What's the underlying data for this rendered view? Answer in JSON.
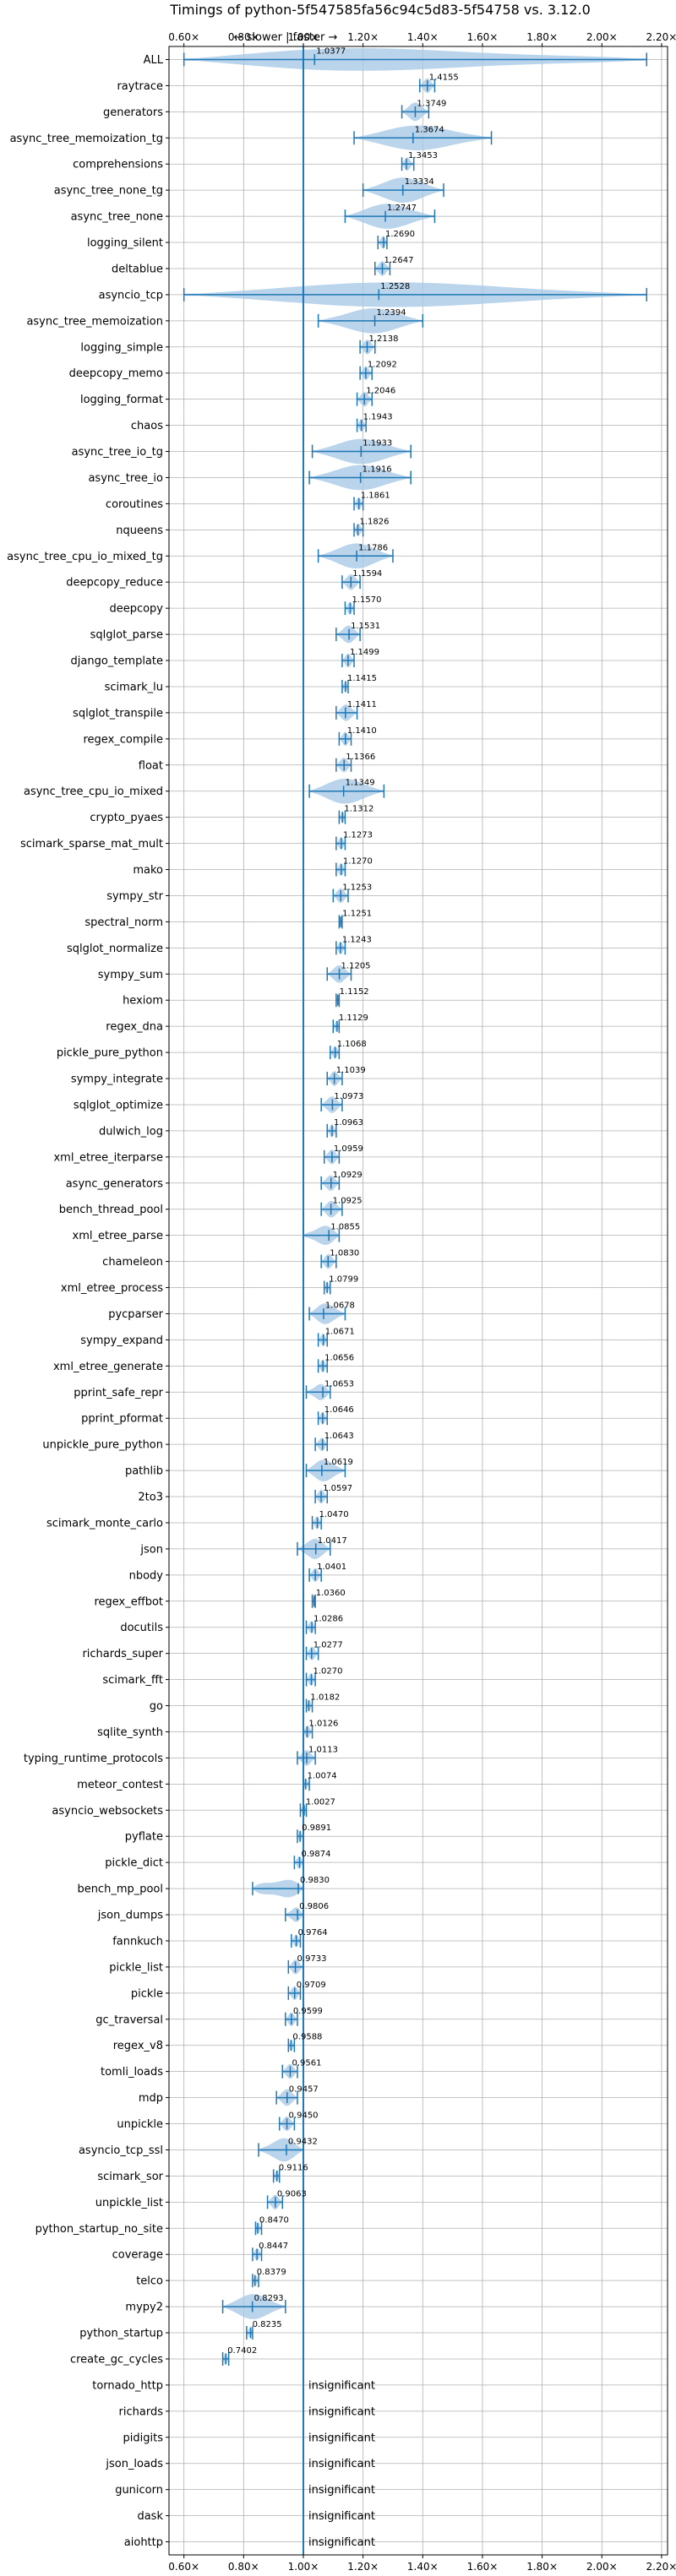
{
  "chart_data": {
    "type": "violin",
    "title": "Timings of python-5f547585fa56c94c5d83-5f54758 vs. 3.12.0",
    "direction_label": "← slower | faster →",
    "xlim": [
      0.55,
      2.22
    ],
    "xticks": [
      "0.60×",
      "0.80×",
      "1.00×",
      "1.20×",
      "1.40×",
      "1.60×",
      "1.80×",
      "2.00×",
      "2.20×"
    ],
    "xtick_values": [
      0.6,
      0.8,
      1.0,
      1.2,
      1.4,
      1.6,
      1.8,
      2.0,
      2.2
    ],
    "grid": true,
    "reference_line": 1.0,
    "colors": {
      "violin": "#a8c9e6",
      "line": "#1f77b4",
      "median": "#e87a7a",
      "grid": "#b0b0b0"
    },
    "categories": [
      {
        "name": "ALL",
        "value": 1.0377,
        "label": "1.0377",
        "min": 0.6,
        "max": 2.15
      },
      {
        "name": "raytrace",
        "value": 1.4155,
        "label": "1.4155",
        "min": 1.39,
        "max": 1.44
      },
      {
        "name": "generators",
        "value": 1.3749,
        "label": "1.3749",
        "min": 1.33,
        "max": 1.42
      },
      {
        "name": "async_tree_memoization_tg",
        "value": 1.3674,
        "label": "1.3674",
        "min": 1.17,
        "max": 1.63
      },
      {
        "name": "comprehensions",
        "value": 1.3453,
        "label": "1.3453",
        "min": 1.33,
        "max": 1.37
      },
      {
        "name": "async_tree_none_tg",
        "value": 1.3334,
        "label": "1.3334",
        "min": 1.2,
        "max": 1.47
      },
      {
        "name": "async_tree_none",
        "value": 1.2747,
        "label": "1.2747",
        "min": 1.14,
        "max": 1.44
      },
      {
        "name": "logging_silent",
        "value": 1.269,
        "label": "1.2690",
        "min": 1.25,
        "max": 1.28
      },
      {
        "name": "deltablue",
        "value": 1.2647,
        "label": "1.2647",
        "min": 1.24,
        "max": 1.29
      },
      {
        "name": "asyncio_tcp",
        "value": 1.2528,
        "label": "1.2528",
        "min": 0.6,
        "max": 2.15
      },
      {
        "name": "async_tree_memoization",
        "value": 1.2394,
        "label": "1.2394",
        "min": 1.05,
        "max": 1.4
      },
      {
        "name": "logging_simple",
        "value": 1.2138,
        "label": "1.2138",
        "min": 1.19,
        "max": 1.24
      },
      {
        "name": "deepcopy_memo",
        "value": 1.2092,
        "label": "1.2092",
        "min": 1.19,
        "max": 1.23
      },
      {
        "name": "logging_format",
        "value": 1.2046,
        "label": "1.2046",
        "min": 1.18,
        "max": 1.23
      },
      {
        "name": "chaos",
        "value": 1.1943,
        "label": "1.1943",
        "min": 1.18,
        "max": 1.21
      },
      {
        "name": "async_tree_io_tg",
        "value": 1.1933,
        "label": "1.1933",
        "min": 1.03,
        "max": 1.36
      },
      {
        "name": "async_tree_io",
        "value": 1.1916,
        "label": "1.1916",
        "min": 1.02,
        "max": 1.36
      },
      {
        "name": "coroutines",
        "value": 1.1861,
        "label": "1.1861",
        "min": 1.17,
        "max": 1.2
      },
      {
        "name": "nqueens",
        "value": 1.1826,
        "label": "1.1826",
        "min": 1.17,
        "max": 1.2
      },
      {
        "name": "async_tree_cpu_io_mixed_tg",
        "value": 1.1786,
        "label": "1.1786",
        "min": 1.05,
        "max": 1.3
      },
      {
        "name": "deepcopy_reduce",
        "value": 1.1594,
        "label": "1.1594",
        "min": 1.13,
        "max": 1.19
      },
      {
        "name": "deepcopy",
        "value": 1.157,
        "label": "1.1570",
        "min": 1.14,
        "max": 1.17
      },
      {
        "name": "sqlglot_parse",
        "value": 1.1531,
        "label": "1.1531",
        "min": 1.11,
        "max": 1.19
      },
      {
        "name": "django_template",
        "value": 1.1499,
        "label": "1.1499",
        "min": 1.13,
        "max": 1.17
      },
      {
        "name": "scimark_lu",
        "value": 1.1415,
        "label": "1.1415",
        "min": 1.13,
        "max": 1.15
      },
      {
        "name": "sqlglot_transpile",
        "value": 1.1411,
        "label": "1.1411",
        "min": 1.11,
        "max": 1.18
      },
      {
        "name": "regex_compile",
        "value": 1.141,
        "label": "1.1410",
        "min": 1.12,
        "max": 1.16
      },
      {
        "name": "float",
        "value": 1.1366,
        "label": "1.1366",
        "min": 1.11,
        "max": 1.16
      },
      {
        "name": "async_tree_cpu_io_mixed",
        "value": 1.1349,
        "label": "1.1349",
        "min": 1.02,
        "max": 1.27
      },
      {
        "name": "crypto_pyaes",
        "value": 1.1312,
        "label": "1.1312",
        "min": 1.12,
        "max": 1.14
      },
      {
        "name": "scimark_sparse_mat_mult",
        "value": 1.1273,
        "label": "1.1273",
        "min": 1.11,
        "max": 1.14
      },
      {
        "name": "mako",
        "value": 1.127,
        "label": "1.1270",
        "min": 1.11,
        "max": 1.14
      },
      {
        "name": "sympy_str",
        "value": 1.1253,
        "label": "1.1253",
        "min": 1.1,
        "max": 1.15
      },
      {
        "name": "spectral_norm",
        "value": 1.1251,
        "label": "1.1251",
        "min": 1.12,
        "max": 1.13
      },
      {
        "name": "sqlglot_normalize",
        "value": 1.1243,
        "label": "1.1243",
        "min": 1.11,
        "max": 1.14
      },
      {
        "name": "sympy_sum",
        "value": 1.1205,
        "label": "1.1205",
        "min": 1.08,
        "max": 1.16
      },
      {
        "name": "hexiom",
        "value": 1.1152,
        "label": "1.1152",
        "min": 1.11,
        "max": 1.12
      },
      {
        "name": "regex_dna",
        "value": 1.1129,
        "label": "1.1129",
        "min": 1.1,
        "max": 1.12
      },
      {
        "name": "pickle_pure_python",
        "value": 1.1068,
        "label": "1.1068",
        "min": 1.09,
        "max": 1.12
      },
      {
        "name": "sympy_integrate",
        "value": 1.1039,
        "label": "1.1039",
        "min": 1.08,
        "max": 1.13
      },
      {
        "name": "sqlglot_optimize",
        "value": 1.0973,
        "label": "1.0973",
        "min": 1.06,
        "max": 1.13
      },
      {
        "name": "dulwich_log",
        "value": 1.0963,
        "label": "1.0963",
        "min": 1.08,
        "max": 1.11
      },
      {
        "name": "xml_etree_iterparse",
        "value": 1.0959,
        "label": "1.0959",
        "min": 1.07,
        "max": 1.12
      },
      {
        "name": "async_generators",
        "value": 1.0929,
        "label": "1.0929",
        "min": 1.06,
        "max": 1.12
      },
      {
        "name": "bench_thread_pool",
        "value": 1.0925,
        "label": "1.0925",
        "min": 1.06,
        "max": 1.13
      },
      {
        "name": "xml_etree_parse",
        "value": 1.0855,
        "label": "1.0855",
        "min": 1.0,
        "max": 1.12
      },
      {
        "name": "chameleon",
        "value": 1.083,
        "label": "1.0830",
        "min": 1.06,
        "max": 1.11
      },
      {
        "name": "xml_etree_process",
        "value": 1.0799,
        "label": "1.0799",
        "min": 1.07,
        "max": 1.09
      },
      {
        "name": "pycparser",
        "value": 1.0678,
        "label": "1.0678",
        "min": 1.02,
        "max": 1.14
      },
      {
        "name": "sympy_expand",
        "value": 1.0671,
        "label": "1.0671",
        "min": 1.05,
        "max": 1.08
      },
      {
        "name": "xml_etree_generate",
        "value": 1.0656,
        "label": "1.0656",
        "min": 1.05,
        "max": 1.08
      },
      {
        "name": "pprint_safe_repr",
        "value": 1.0653,
        "label": "1.0653",
        "min": 1.01,
        "max": 1.09
      },
      {
        "name": "pprint_pformat",
        "value": 1.0646,
        "label": "1.0646",
        "min": 1.05,
        "max": 1.08
      },
      {
        "name": "unpickle_pure_python",
        "value": 1.0643,
        "label": "1.0643",
        "min": 1.04,
        "max": 1.08
      },
      {
        "name": "pathlib",
        "value": 1.0619,
        "label": "1.0619",
        "min": 1.01,
        "max": 1.14
      },
      {
        "name": "2to3",
        "value": 1.0597,
        "label": "1.0597",
        "min": 1.04,
        "max": 1.08
      },
      {
        "name": "scimark_monte_carlo",
        "value": 1.047,
        "label": "1.0470",
        "min": 1.03,
        "max": 1.06
      },
      {
        "name": "json",
        "value": 1.0417,
        "label": "1.0417",
        "min": 0.98,
        "max": 1.09
      },
      {
        "name": "nbody",
        "value": 1.0401,
        "label": "1.0401",
        "min": 1.02,
        "max": 1.06
      },
      {
        "name": "regex_effbot",
        "value": 1.036,
        "label": "1.0360",
        "min": 1.03,
        "max": 1.04
      },
      {
        "name": "docutils",
        "value": 1.0286,
        "label": "1.0286",
        "min": 1.01,
        "max": 1.04
      },
      {
        "name": "richards_super",
        "value": 1.0277,
        "label": "1.0277",
        "min": 1.01,
        "max": 1.05
      },
      {
        "name": "scimark_fft",
        "value": 1.027,
        "label": "1.0270",
        "min": 1.01,
        "max": 1.04
      },
      {
        "name": "go",
        "value": 1.0182,
        "label": "1.0182",
        "min": 1.01,
        "max": 1.03
      },
      {
        "name": "sqlite_synth",
        "value": 1.0126,
        "label": "1.0126",
        "min": 1.0,
        "max": 1.03
      },
      {
        "name": "typing_runtime_protocols",
        "value": 1.0113,
        "label": "1.0113",
        "min": 0.98,
        "max": 1.04
      },
      {
        "name": "meteor_contest",
        "value": 1.0074,
        "label": "1.0074",
        "min": 1.0,
        "max": 1.02
      },
      {
        "name": "asyncio_websockets",
        "value": 1.0027,
        "label": "1.0027",
        "min": 0.99,
        "max": 1.01
      },
      {
        "name": "pyflate",
        "value": 0.9891,
        "label": "0.9891",
        "min": 0.98,
        "max": 1.0
      },
      {
        "name": "pickle_dict",
        "value": 0.9874,
        "label": "0.9874",
        "min": 0.97,
        "max": 1.0
      },
      {
        "name": "bench_mp_pool",
        "value": 0.983,
        "label": "0.9830",
        "min": 0.83,
        "max": 1.0
      },
      {
        "name": "json_dumps",
        "value": 0.9806,
        "label": "0.9806",
        "min": 0.94,
        "max": 1.0
      },
      {
        "name": "fannkuch",
        "value": 0.9764,
        "label": "0.9764",
        "min": 0.96,
        "max": 0.99
      },
      {
        "name": "pickle_list",
        "value": 0.9733,
        "label": "0.9733",
        "min": 0.95,
        "max": 1.0
      },
      {
        "name": "pickle",
        "value": 0.9709,
        "label": "0.9709",
        "min": 0.95,
        "max": 0.99
      },
      {
        "name": "gc_traversal",
        "value": 0.9599,
        "label": "0.9599",
        "min": 0.94,
        "max": 0.98
      },
      {
        "name": "regex_v8",
        "value": 0.9588,
        "label": "0.9588",
        "min": 0.95,
        "max": 0.97
      },
      {
        "name": "tomli_loads",
        "value": 0.9561,
        "label": "0.9561",
        "min": 0.93,
        "max": 0.98
      },
      {
        "name": "mdp",
        "value": 0.9457,
        "label": "0.9457",
        "min": 0.91,
        "max": 0.98
      },
      {
        "name": "unpickle",
        "value": 0.945,
        "label": "0.9450",
        "min": 0.92,
        "max": 0.97
      },
      {
        "name": "asyncio_tcp_ssl",
        "value": 0.9432,
        "label": "0.9432",
        "min": 0.85,
        "max": 1.0
      },
      {
        "name": "scimark_sor",
        "value": 0.9116,
        "label": "0.9116",
        "min": 0.9,
        "max": 0.92
      },
      {
        "name": "unpickle_list",
        "value": 0.9063,
        "label": "0.9063",
        "min": 0.88,
        "max": 0.93
      },
      {
        "name": "python_startup_no_site",
        "value": 0.847,
        "label": "0.8470",
        "min": 0.84,
        "max": 0.86
      },
      {
        "name": "coverage",
        "value": 0.8447,
        "label": "0.8447",
        "min": 0.83,
        "max": 0.86
      },
      {
        "name": "telco",
        "value": 0.8379,
        "label": "0.8379",
        "min": 0.83,
        "max": 0.85
      },
      {
        "name": "mypy2",
        "value": 0.8293,
        "label": "0.8293",
        "min": 0.73,
        "max": 0.94
      },
      {
        "name": "python_startup",
        "value": 0.8235,
        "label": "0.8235",
        "min": 0.81,
        "max": 0.83
      },
      {
        "name": "create_gc_cycles",
        "value": 0.7402,
        "label": "0.7402",
        "min": 0.73,
        "max": 0.75
      },
      {
        "name": "tornado_http",
        "value": null,
        "label": "insignificant"
      },
      {
        "name": "richards",
        "value": null,
        "label": "insignificant"
      },
      {
        "name": "pidigits",
        "value": null,
        "label": "insignificant"
      },
      {
        "name": "json_loads",
        "value": null,
        "label": "insignificant"
      },
      {
        "name": "gunicorn",
        "value": null,
        "label": "insignificant"
      },
      {
        "name": "dask",
        "value": null,
        "label": "insignificant"
      },
      {
        "name": "aiohttp",
        "value": null,
        "label": "insignificant"
      }
    ]
  }
}
